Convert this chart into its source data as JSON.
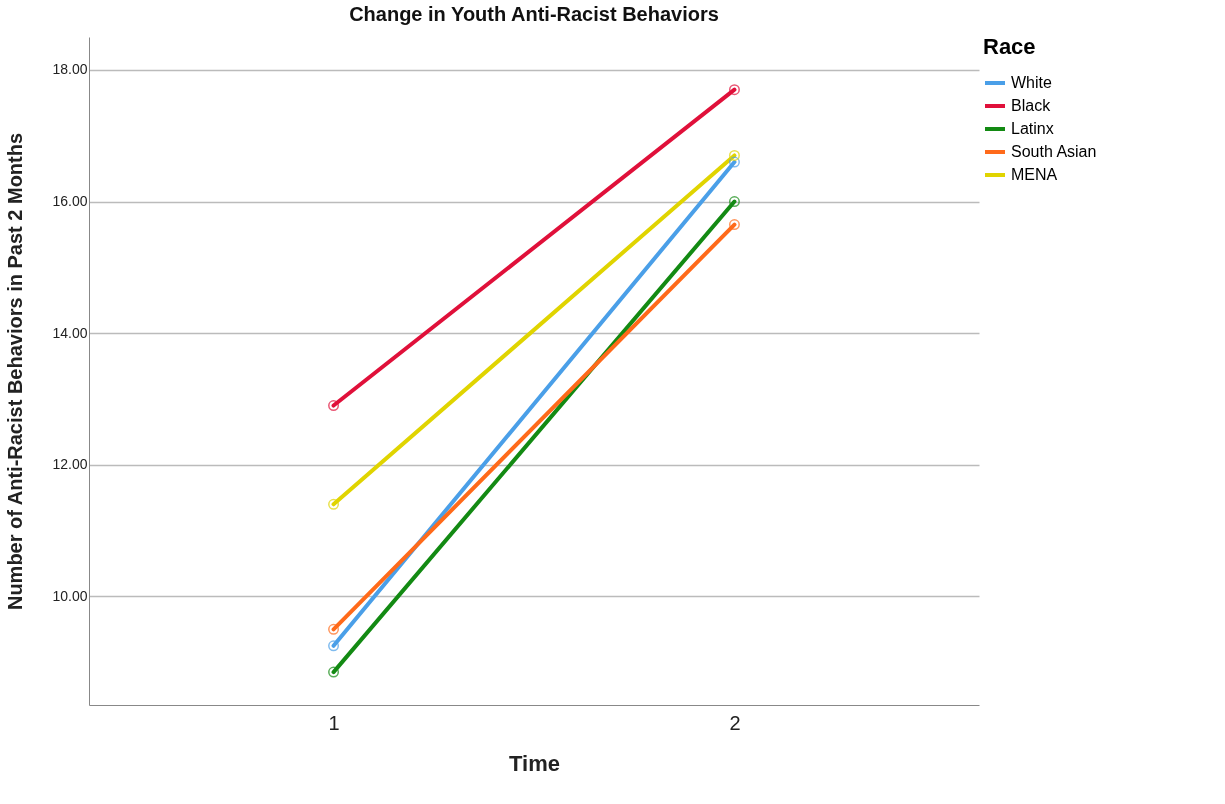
{
  "chart_data": {
    "type": "line",
    "title": "Change in Youth Anti-Racist Behaviors",
    "xlabel": "Time",
    "ylabel": "Number of Anti-Racist Behaviors in Past 2 Months",
    "legend_title": "Race",
    "categories": [
      "1",
      "2"
    ],
    "series": [
      {
        "name": "White",
        "color": "#4a9fe8",
        "values": [
          9.25,
          16.6
        ]
      },
      {
        "name": "Black",
        "color": "#e0103a",
        "values": [
          12.9,
          17.7
        ]
      },
      {
        "name": "Latinx",
        "color": "#138a13",
        "values": [
          8.85,
          16.0
        ]
      },
      {
        "name": "South Asian",
        "color": "#ff6a1a",
        "values": [
          9.5,
          15.65
        ]
      },
      {
        "name": "MENA",
        "color": "#e0d400",
        "values": [
          11.4,
          16.7
        ]
      }
    ],
    "ylim": [
      8.35,
      18.5
    ],
    "yticks": [
      {
        "value": 10,
        "label": "10.00"
      },
      {
        "value": 12,
        "label": "12.00"
      },
      {
        "value": 14,
        "label": "14.00"
      },
      {
        "value": 16,
        "label": "16.00"
      },
      {
        "value": 18,
        "label": "18.00"
      }
    ],
    "grid": "y",
    "legend": "top right",
    "marker": "circle",
    "line_style": "solid"
  }
}
